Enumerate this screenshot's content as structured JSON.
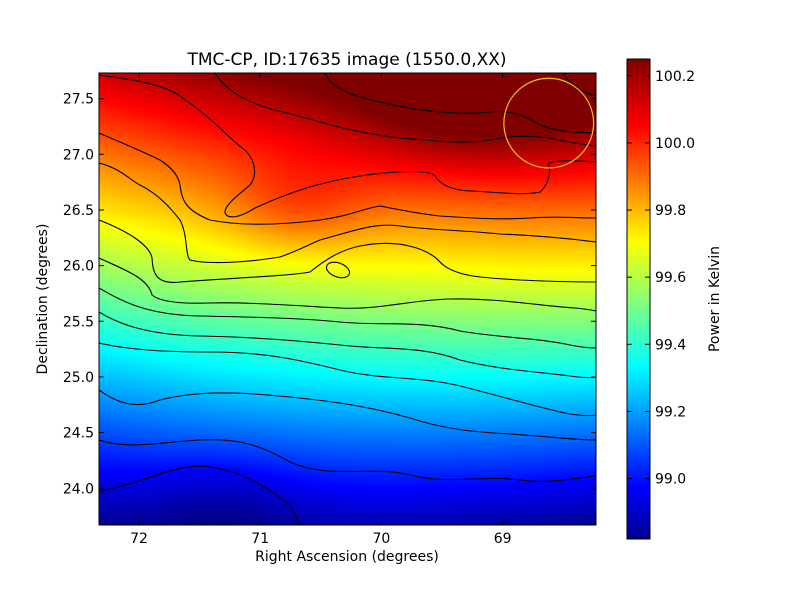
{
  "chart_data": {
    "type": "heatmap",
    "title": "TMC-CP, ID:17635 image (1550.0,XX)",
    "xlabel": "Right Ascension (degrees)",
    "ylabel": "Declination (degrees)",
    "xlim": [
      72.33,
      68.23
    ],
    "ylim": [
      23.67,
      27.73
    ],
    "x_ticks": [
      {
        "value": 72,
        "label": "72"
      },
      {
        "value": 71,
        "label": "71"
      },
      {
        "value": 70,
        "label": "70"
      },
      {
        "value": 69,
        "label": "69"
      }
    ],
    "y_ticks": [
      {
        "value": 24.0,
        "label": "24.0"
      },
      {
        "value": 24.5,
        "label": "24.5"
      },
      {
        "value": 25.0,
        "label": "25.0"
      },
      {
        "value": 25.5,
        "label": "25.5"
      },
      {
        "value": 26.0,
        "label": "26.0"
      },
      {
        "value": 26.5,
        "label": "26.5"
      },
      {
        "value": 27.0,
        "label": "27.0"
      },
      {
        "value": 27.5,
        "label": "27.5"
      }
    ],
    "colormap": "jet",
    "colorbar": {
      "label": "Power in Kelvin",
      "range": [
        98.82,
        100.25
      ],
      "ticks": [
        {
          "value": 99.0,
          "label": "99.0"
        },
        {
          "value": 99.2,
          "label": "99.2"
        },
        {
          "value": 99.4,
          "label": "99.4"
        },
        {
          "value": 99.6,
          "label": "99.6"
        },
        {
          "value": 99.8,
          "label": "99.8"
        },
        {
          "value": 100.0,
          "label": "100.0"
        },
        {
          "value": 100.2,
          "label": "100.2"
        }
      ]
    },
    "beam_circle": {
      "ra": 68.62,
      "dec": 27.28,
      "radius_deg": 0.37,
      "color": "#e8c21c"
    },
    "grid": false
  }
}
